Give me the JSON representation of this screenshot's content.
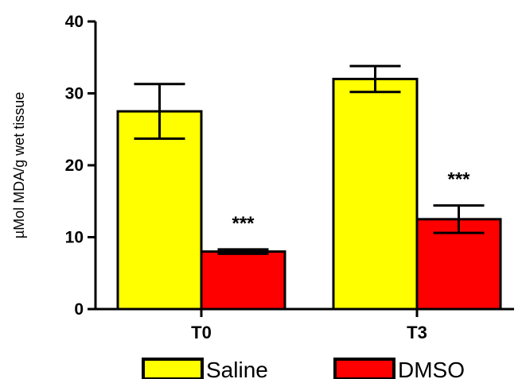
{
  "chart_data": {
    "type": "bar",
    "ylabel": "µMol MDA/g wet tissue",
    "xlabel": "",
    "title": "",
    "ylim": [
      0,
      40
    ],
    "yticks": [
      0,
      10,
      20,
      30,
      40
    ],
    "categories": [
      "T0",
      "T3"
    ],
    "series": [
      {
        "name": "Saline",
        "color": "#ffff00",
        "values": [
          27.5,
          32.0
        ],
        "errors": [
          3.8,
          1.8
        ],
        "annotations": [
          "",
          ""
        ]
      },
      {
        "name": "DMSO",
        "color": "#ff0000",
        "values": [
          8.0,
          12.5
        ],
        "errors": [
          0.3,
          1.9
        ],
        "annotations": [
          "***",
          "***"
        ]
      }
    ],
    "legend_position": "bottom",
    "grid": false
  }
}
